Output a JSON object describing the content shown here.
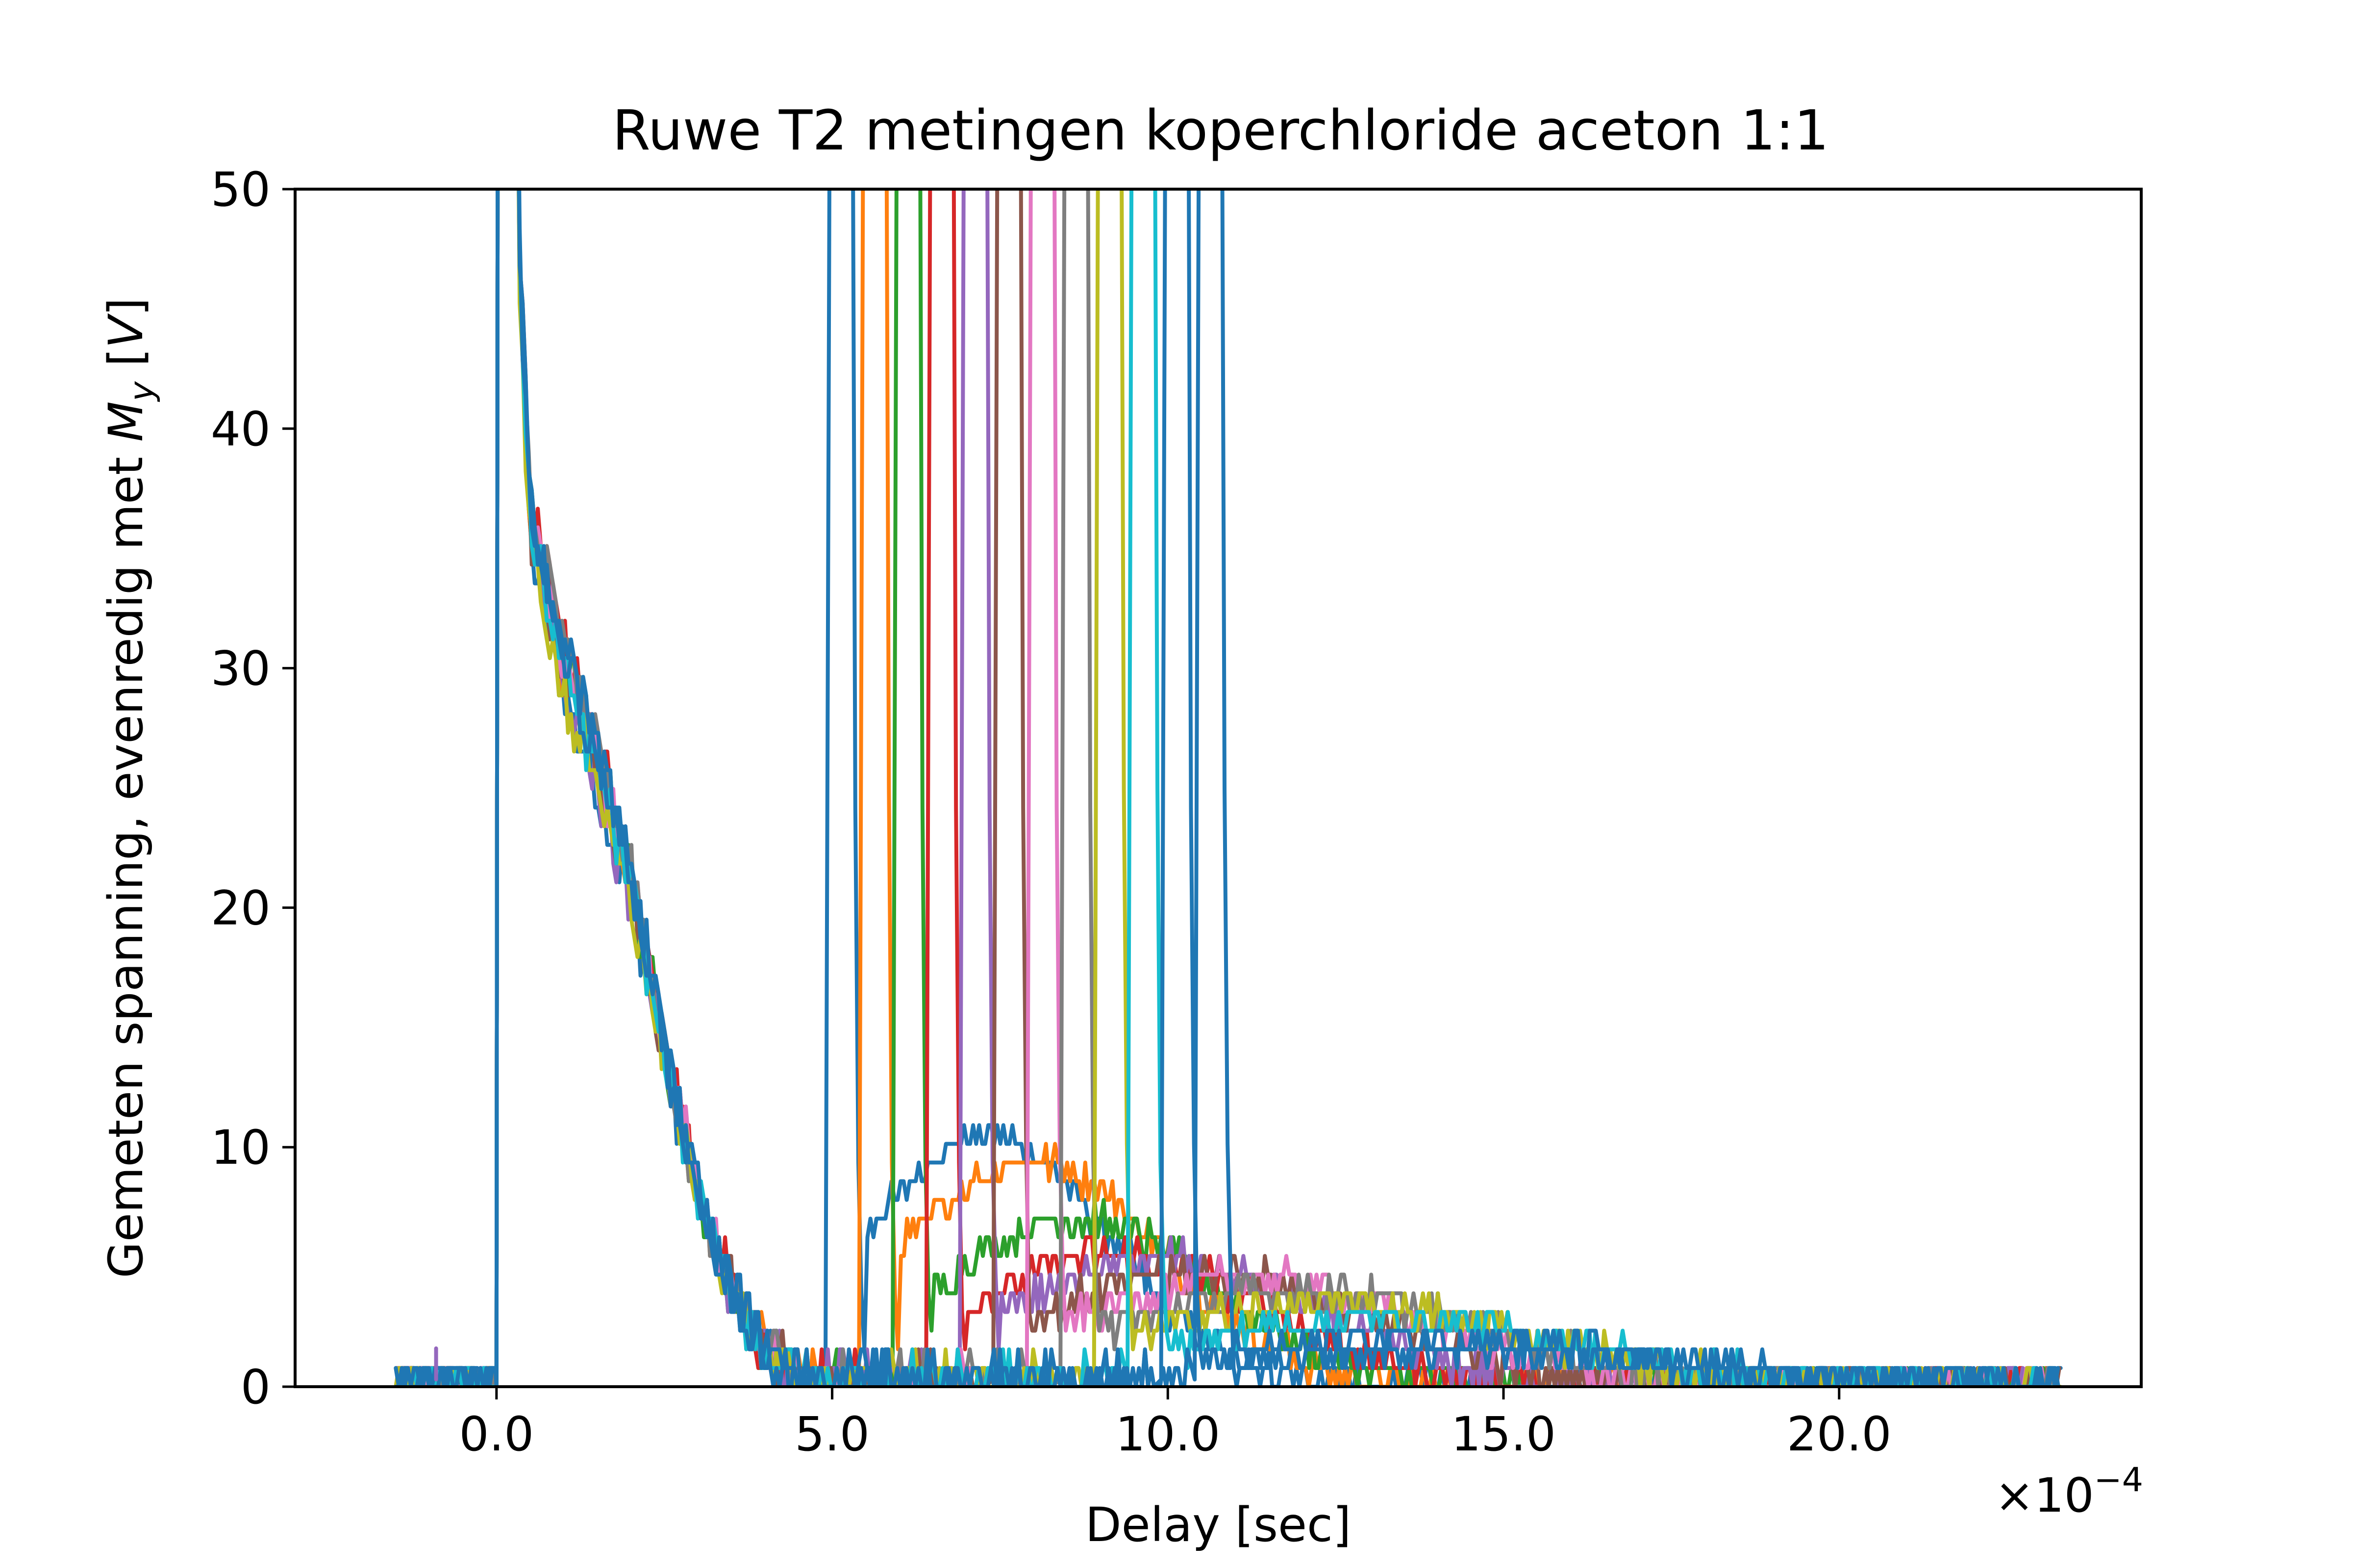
{
  "chart_data": {
    "type": "line",
    "title": "Ruwe T2 metingen koperchloride aceton 1:1",
    "xlabel": "Delay [sec]",
    "ylabel_main": "Gemeten spanning, evenredig met ",
    "ylabel_math_M": "M",
    "ylabel_math_sub": "y",
    "ylabel_unit_open": " [",
    "ylabel_unit_V": "V",
    "ylabel_unit_close": "]",
    "x_offset_base": "×10",
    "x_offset_exp": "−4",
    "xlim": [
      -0.0003,
      0.00245
    ],
    "ylim": [
      0,
      50
    ],
    "x_ticks": [
      0.0,
      0.0005,
      0.001,
      0.0015,
      0.002
    ],
    "x_tick_labels": [
      "0.0",
      "5.0",
      "10.0",
      "15.0",
      "20.0"
    ],
    "y_ticks": [
      0,
      10,
      20,
      30,
      40,
      50
    ],
    "y_tick_labels": [
      "0",
      "10",
      "20",
      "30",
      "40",
      "50"
    ],
    "decay": {
      "x": [
        3e-05,
        5e-05,
        0.0001,
        0.00015,
        0.0002,
        0.00025,
        0.0003,
        0.00035,
        0.0004,
        0.00045
      ],
      "y": [
        50,
        36,
        30,
        26,
        21,
        14,
        8,
        4,
        1.5,
        0.5
      ]
    },
    "series": [
      {
        "color": "#1f77b4",
        "echo_time": 0.0005,
        "echo_peak": 10.5
      },
      {
        "color": "#ff7f0e",
        "echo_time": 0.00055,
        "echo_peak": 9.5
      },
      {
        "color": "#2ca02c",
        "echo_time": 0.0006,
        "echo_peak": 7.0
      },
      {
        "color": "#d62728",
        "echo_time": 0.00065,
        "echo_peak": 5.5
      },
      {
        "color": "#9467bd",
        "echo_time": 0.0007,
        "echo_peak": 5.3
      },
      {
        "color": "#8c564b",
        "echo_time": 0.00075,
        "echo_peak": 4.8
      },
      {
        "color": "#e377c2",
        "echo_time": 0.0008,
        "echo_peak": 4.5
      },
      {
        "color": "#7f7f7f",
        "echo_time": 0.00085,
        "echo_peak": 4.0
      },
      {
        "color": "#bcbd22",
        "echo_time": 0.0009,
        "echo_peak": 3.5
      },
      {
        "color": "#17becf",
        "echo_time": 0.00095,
        "echo_peak": 2.8
      },
      {
        "color": "#1f77b4",
        "echo_time": 0.001,
        "echo_peak": 2.0
      },
      {
        "color": "#1f77b4",
        "echo_time": 0.00105,
        "echo_peak": 1.5
      }
    ],
    "baseline_start": -0.00015,
    "pulse_time": 0.0,
    "record_end": 0.00233,
    "blip": {
      "x": -9e-05,
      "y": 1.6
    }
  }
}
